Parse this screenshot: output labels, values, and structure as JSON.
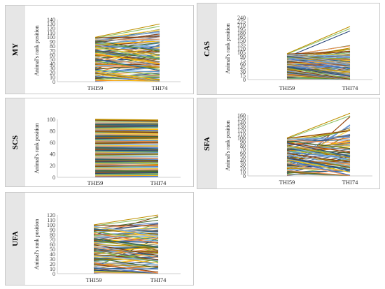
{
  "chart_data": [
    {
      "id": "MY",
      "type": "line",
      "panel_label": "MY",
      "categories": [
        "THI59",
        "THI74"
      ],
      "ylabel": "Animal's rank position",
      "ylim": [
        0,
        140
      ],
      "yticks": [
        0,
        10,
        20,
        30,
        40,
        50,
        60,
        70,
        80,
        90,
        100,
        110,
        120,
        130,
        140
      ],
      "n_animals": 100,
      "max_thi74": 130,
      "spread": 30
    },
    {
      "id": "CAS",
      "type": "line",
      "panel_label": "CAS",
      "categories": [
        "THI59",
        "THI74"
      ],
      "ylabel": "Animal's rank position",
      "ylim": [
        0,
        240
      ],
      "yticks": [
        0,
        15,
        30,
        45,
        60,
        75,
        90,
        105,
        120,
        135,
        150,
        165,
        180,
        195,
        210,
        225,
        240
      ],
      "n_animals": 100,
      "max_thi74": 205,
      "spread": 45
    },
    {
      "id": "SCS",
      "type": "line",
      "panel_label": "SCS",
      "categories": [
        "THI59",
        "THI74"
      ],
      "ylabel": "Animal's rank position",
      "ylim": [
        0,
        100
      ],
      "yticks": [
        0,
        20,
        40,
        60,
        80,
        100
      ],
      "n_animals": 100,
      "max_thi74": 100,
      "spread": 4
    },
    {
      "id": "SFA",
      "type": "line",
      "panel_label": "SFA",
      "categories": [
        "THI59",
        "THI74"
      ],
      "ylabel": "Animal's rank position",
      "ylim": [
        0,
        160
      ],
      "yticks": [
        0,
        10,
        20,
        30,
        40,
        50,
        60,
        70,
        80,
        90,
        100,
        110,
        120,
        130,
        140,
        150,
        160
      ],
      "n_animals": 100,
      "max_thi74": 165,
      "spread": 40
    },
    {
      "id": "UFA",
      "type": "line",
      "panel_label": "UFA",
      "categories": [
        "THI59",
        "THI74"
      ],
      "ylabel": "Animal's rank position",
      "ylim": [
        0,
        120
      ],
      "yticks": [
        0,
        10,
        20,
        30,
        40,
        50,
        60,
        70,
        80,
        90,
        100,
        110,
        120
      ],
      "n_animals": 100,
      "max_thi74": 120,
      "spread": 22
    }
  ],
  "palette": [
    "#4472c4",
    "#ed7d31",
    "#a5a5a5",
    "#ffc000",
    "#5b9bd5",
    "#70ad47",
    "#264478",
    "#9e480e",
    "#636363",
    "#997300",
    "#255e91",
    "#43682b",
    "#698ed0",
    "#f1975a",
    "#b7b7b7",
    "#ffcd33",
    "#7cafdd",
    "#8cc168",
    "#843c0c",
    "#bf9000"
  ]
}
